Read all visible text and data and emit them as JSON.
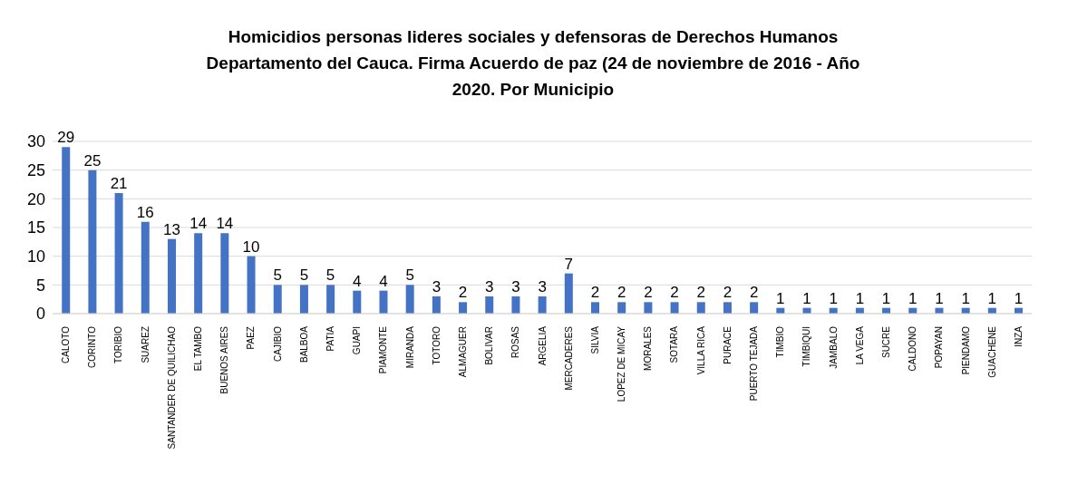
{
  "chart_data": {
    "type": "bar",
    "title": "Homicidios personas lideres sociales y defensoras de Derechos Humanos\nDepartamento del Cauca. Firma Acuerdo de paz (24 de noviembre de 2016 - Año\n2020. Por Municipio",
    "categories": [
      "CALOTO",
      "CORINTO",
      "TORIBIO",
      "SUAREZ",
      "SANTANDER DE QUILICHAO",
      "EL TAMBO",
      "BUENOS AIRES",
      "PAEZ",
      "CAJIBIO",
      "BALBOA",
      "PATIA",
      "GUAPI",
      "PIAMONTE",
      "MIRANDA",
      "TOTORO",
      "ALMAGUER",
      "BOLIVAR",
      "ROSAS",
      "ARGELIA",
      "MERCADERES",
      "SILVIA",
      "LOPEZ DE MICAY",
      "MORALES",
      "SOTARA",
      "VILLA RICA",
      "PURACE",
      "PUERTO TEJADA",
      "TIMBIO",
      "TIMBIQUI",
      "JAMBALO",
      "LA VEGA",
      "SUCRE",
      "CALDONO",
      "POPAYAN",
      "PIENDAMO",
      "GUACHENE",
      "INZA"
    ],
    "values": [
      29,
      25,
      21,
      16,
      13,
      14,
      14,
      10,
      5,
      5,
      5,
      4,
      4,
      5,
      3,
      2,
      3,
      3,
      3,
      7,
      2,
      2,
      2,
      2,
      2,
      2,
      2,
      1,
      1,
      1,
      1,
      1,
      1,
      1,
      1,
      1,
      1
    ],
    "color": "#4472c4",
    "ylim": [
      0,
      30
    ],
    "yticks": [
      0,
      5,
      10,
      15,
      20,
      25,
      30
    ],
    "grid": "y",
    "data_labels": true
  }
}
